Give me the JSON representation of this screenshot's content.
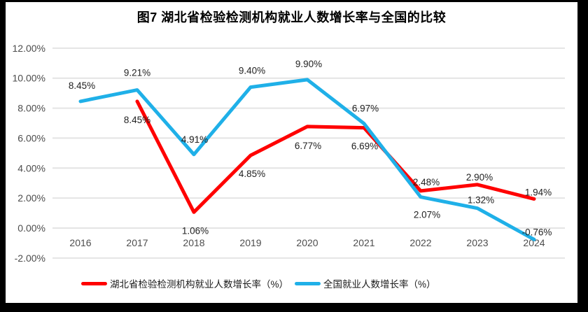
{
  "title": "图7 湖北省检验检测机构就业人数增长率与全国的比较",
  "chart_data": {
    "type": "line",
    "title": "图7 湖北省检验检测机构就业人数增长率与全国的比较",
    "categories": [
      "2016",
      "2017",
      "2018",
      "2019",
      "2020",
      "2021",
      "2022",
      "2023",
      "2024"
    ],
    "series": [
      {
        "name": "湖北省检验检测机构就业人数增长率（%）",
        "color": "#ff0000",
        "values": [
          null,
          8.45,
          1.06,
          4.85,
          6.77,
          6.69,
          2.48,
          2.9,
          1.94
        ],
        "labels": [
          "",
          "8.45%",
          "1.06%",
          "4.85%",
          "6.77%",
          "6.69%",
          "2.48%",
          "2.90%",
          "1.94%"
        ]
      },
      {
        "name": "全国就业人数增长率（%）",
        "color": "#1fb0e8",
        "values": [
          8.45,
          9.21,
          4.91,
          9.4,
          9.9,
          6.97,
          2.07,
          1.32,
          -0.76
        ],
        "labels": [
          "8.45%",
          "9.21%",
          "4.91%",
          "9.40%",
          "9.90%",
          "6.97%",
          "2.07%",
          "1.32%",
          "-0.76%"
        ]
      }
    ],
    "xlabel": "",
    "ylabel": "",
    "ylim": [
      -2,
      12
    ],
    "y_ticks": [
      "12.00%",
      "10.00%",
      "8.00%",
      "6.00%",
      "4.00%",
      "2.00%",
      "0.00%",
      "-2.00%"
    ],
    "y_tick_values": [
      12,
      10,
      8,
      6,
      4,
      2,
      0,
      -2
    ],
    "grid": true,
    "legend_position": "bottom"
  },
  "colors": {
    "hubei_line": "#ff0000",
    "national_line": "#1fb0e8",
    "gridline": "#e4e4e4",
    "axis_text": "#4d4d4d",
    "data_label": "#1f1f1f",
    "frame": "#000000",
    "background": "#ffffff"
  }
}
